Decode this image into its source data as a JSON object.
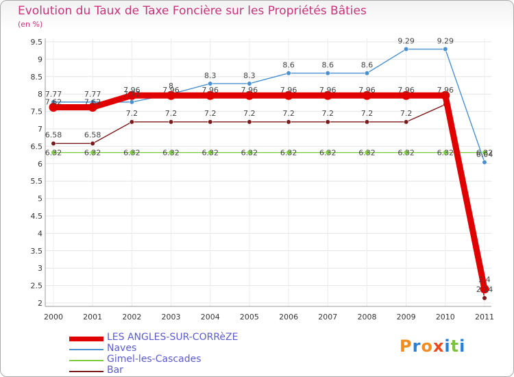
{
  "chart_data": {
    "type": "line",
    "title": "Evolution du Taux de Taxe Foncière sur les Propriétés Bâties",
    "unit_label": "(en %)",
    "x": [
      "2000",
      "2001",
      "2002",
      "2003",
      "2004",
      "2005",
      "2006",
      "2007",
      "2008",
      "2009",
      "2010",
      "2011"
    ],
    "ylim": [
      2,
      9.5
    ],
    "yticks": [
      "2",
      "2.5",
      "3",
      "3.5",
      "4",
      "4.5",
      "5",
      "5.5",
      "6",
      "6.5",
      "7",
      "7.5",
      "8",
      "8.5",
      "9",
      "9.5"
    ],
    "grid": true,
    "legend_position": "bottom-left",
    "series": [
      {
        "name": "LES ANGLES-SUR-CORRèZE",
        "color": "#e00000",
        "values": [
          7.62,
          7.62,
          7.96,
          7.96,
          7.96,
          7.96,
          7.96,
          7.96,
          7.96,
          7.96,
          7.96,
          2.4
        ]
      },
      {
        "name": "Naves",
        "color": "#4a8fd0",
        "values": [
          7.77,
          7.77,
          7.77,
          8.0,
          8.3,
          8.3,
          8.6,
          8.6,
          8.6,
          9.29,
          9.29,
          6.04
        ]
      },
      {
        "name": "Gimel-les-Cascades",
        "color": "#7ccc40",
        "values": [
          6.32,
          6.32,
          6.32,
          6.32,
          6.32,
          6.32,
          6.32,
          6.32,
          6.32,
          6.32,
          6.32,
          6.32
        ]
      },
      {
        "name": "Bar",
        "color": "#7a1a1a",
        "values": [
          6.58,
          6.58,
          7.2,
          7.2,
          7.2,
          7.2,
          7.2,
          7.2,
          7.2,
          7.2,
          7.7,
          2.14
        ]
      }
    ],
    "data_labels": {
      "Naves": [
        "7.77",
        "7.77",
        "7.77",
        "8",
        "8.3",
        "8.3",
        "8.6",
        "8.6",
        "8.6",
        "9.29",
        "9.29",
        "6.04"
      ],
      "LES ANGLES-SUR-CORRèZE": [
        "7.62",
        "7.62",
        "7.96",
        "7.96",
        "7.96",
        "7.96",
        "7.96",
        "7.96",
        "7.96",
        "7.96",
        "7.96",
        "2.4"
      ],
      "Gimel-les-Cascades": [
        "6.32",
        "6.32",
        "6.32",
        "6.32",
        "6.32",
        "6.32",
        "6.32",
        "6.32",
        "6.32",
        "6.32",
        "6.32",
        "6.32"
      ],
      "Bar": [
        "6.58",
        "6.58",
        "7.2",
        "7.2",
        "7.2",
        "7.2",
        "7.2",
        "7.2",
        "7.2",
        "7.2",
        "",
        "2.14"
      ]
    }
  },
  "brand": {
    "text": "Proxiti",
    "colors": [
      "#f28c1e",
      "#2a7fd4",
      "#f28c1e",
      "#e8491d",
      "#2a7fd4",
      "#7cc242",
      "#2a7fd4"
    ]
  }
}
